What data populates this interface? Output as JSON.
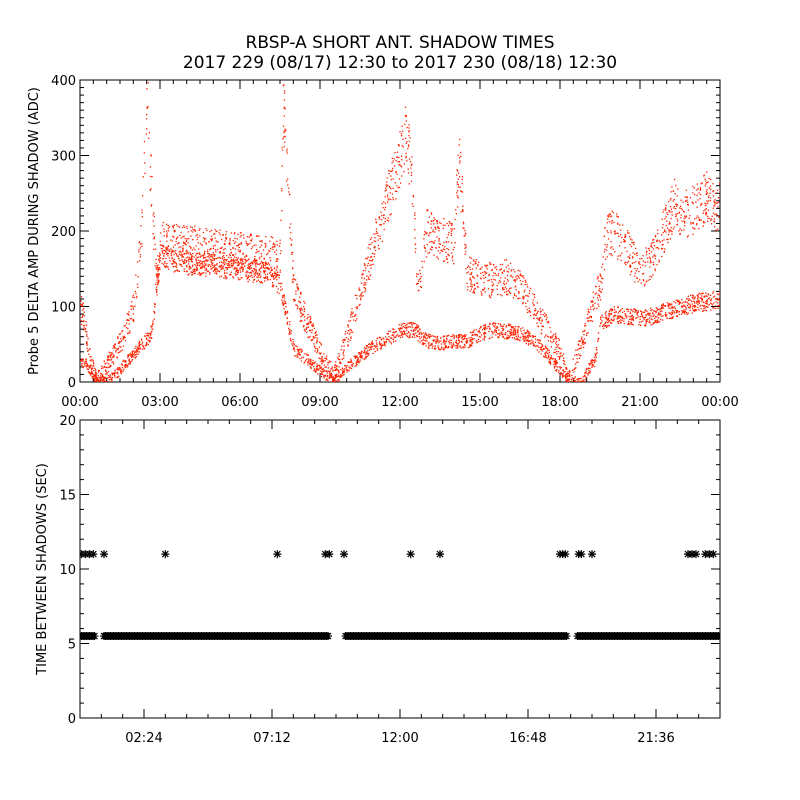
{
  "title": "RBSP-A SHORT ANT. SHADOW TIMES",
  "subtitle": "2017 229 (08/17) 12:30 to 2017 230 (08/18) 12:30",
  "colors": {
    "points": "#ff2200",
    "markers": "#000000",
    "axes": "#000000"
  },
  "chart_data": [
    {
      "type": "scatter",
      "ylabel": "Probe 5 DELTA AMP DURING SHADOW (ADC)",
      "xlabel": "",
      "xlim": [
        0,
        24
      ],
      "ylim": [
        0,
        400
      ],
      "x_tick_values": [
        0,
        3,
        6,
        9,
        12,
        15,
        18,
        21,
        24
      ],
      "x_tick_labels": [
        "00:00",
        "03:00",
        "06:00",
        "09:00",
        "12:00",
        "15:00",
        "18:00",
        "21:00",
        "00:00"
      ],
      "y_tick_values": [
        0,
        100,
        200,
        300,
        400
      ],
      "y_tick_labels": [
        "0",
        "100",
        "200",
        "300",
        "400"
      ],
      "grid": false,
      "marker_color": "#ff2200",
      "series": [
        {
          "x": [
            0.0,
            0.2,
            0.4,
            0.6,
            1.0,
            1.3,
            1.6,
            2.0,
            2.3,
            2.5,
            2.7,
            3.0,
            3.5,
            4.0,
            5.0,
            6.0,
            7.0,
            7.5,
            8.0,
            8.5,
            9.0,
            9.5,
            10.0,
            10.5,
            11.0,
            11.5,
            12.0,
            12.5,
            13.0,
            13.5,
            14.0,
            14.5,
            15.0,
            15.5,
            16.0,
            16.5,
            17.0,
            17.5,
            18.0,
            18.4,
            18.8,
            19.0,
            19.3,
            19.5,
            20.0,
            20.5,
            21.0,
            21.5,
            22.0,
            22.5,
            23.0,
            23.5,
            24.0
          ],
          "y": [
            30,
            25,
            15,
            2,
            2,
            10,
            22,
            38,
            50,
            58,
            70,
            170,
            162,
            158,
            155,
            150,
            145,
            130,
            45,
            30,
            15,
            2,
            20,
            35,
            48,
            58,
            68,
            70,
            55,
            52,
            55,
            55,
            65,
            70,
            68,
            65,
            55,
            38,
            15,
            2,
            2,
            15,
            30,
            78,
            90,
            88,
            85,
            88,
            95,
            100,
            105,
            108,
            110
          ]
        },
        {
          "x": [
            0.0,
            0.15,
            0.3,
            0.6,
            1.3,
            1.6,
            2.0,
            2.3,
            2.5,
            2.6,
            2.75,
            2.85,
            3.0,
            7.5,
            7.6,
            7.8,
            8.0,
            8.5,
            9.0,
            9.5,
            10.0,
            10.5,
            11.0,
            11.5,
            12.0,
            12.2,
            12.5,
            12.6,
            12.8,
            13.0,
            13.5,
            14.0,
            14.2,
            14.5,
            15.0,
            15.5,
            16.0,
            16.5,
            17.0,
            17.5,
            18.0,
            18.3,
            19.5,
            19.7,
            20.0,
            20.5,
            21.0,
            21.5,
            22.0,
            22.3,
            22.6,
            23.0,
            23.5,
            24.0
          ],
          "y": [
            100,
            80,
            40,
            2,
            40,
            60,
            100,
            200,
            400,
            300,
            200,
            130,
            185,
            165,
            380,
            250,
            120,
            80,
            40,
            10,
            60,
            120,
            180,
            240,
            300,
            330,
            260,
            140,
            150,
            200,
            190,
            185,
            300,
            145,
            140,
            135,
            140,
            125,
            100,
            70,
            40,
            2,
            130,
            190,
            200,
            175,
            145,
            170,
            210,
            240,
            220,
            230,
            245,
            230
          ]
        }
      ]
    },
    {
      "type": "scatter",
      "ylabel": "TIME BETWEEN SHADOWS (SEC)",
      "xlabel": "",
      "xlim": [
        0,
        24
      ],
      "ylim": [
        0,
        20
      ],
      "x_tick_values": [
        2.4,
        7.2,
        12.0,
        16.8,
        21.6
      ],
      "x_tick_labels": [
        "02:24",
        "07:12",
        "12:00",
        "16:48",
        "21:36"
      ],
      "y_tick_values": [
        0,
        5,
        10,
        15,
        20
      ],
      "y_tick_labels": [
        "0",
        "5",
        "10",
        "15",
        "20"
      ],
      "grid": false,
      "marker": "asterisk",
      "marker_color": "#000000",
      "series": [
        {
          "x": [
            0.05,
            0.2,
            0.35,
            0.5,
            0.9,
            3.2,
            7.4,
            9.2,
            9.35,
            9.9,
            12.4,
            13.5,
            18.0,
            18.1,
            18.2,
            18.7,
            18.8,
            19.2,
            22.8,
            22.95,
            23.1,
            23.45,
            23.6,
            23.75
          ],
          "y": [
            11,
            11,
            11,
            11,
            11,
            11,
            11,
            11,
            11,
            11,
            11,
            11,
            11,
            11,
            11,
            11,
            11,
            11,
            11,
            11,
            11,
            11,
            11,
            11
          ]
        },
        {
          "x": [
            0.0,
            0.2,
            0.4,
            0.55,
            0.9,
            1.2,
            1.5,
            1.8,
            2.1,
            2.4,
            2.7,
            3.0,
            3.3,
            3.6,
            3.9,
            4.2,
            4.5,
            4.8,
            5.1,
            5.4,
            5.7,
            6.0,
            6.3,
            6.6,
            6.9,
            7.2,
            7.5,
            7.8,
            8.1,
            8.4,
            8.7,
            9.0,
            9.3,
            10.0,
            10.3,
            10.6,
            10.9,
            11.2,
            11.5,
            11.8,
            12.1,
            12.4,
            12.7,
            13.0,
            13.3,
            13.6,
            13.9,
            14.2,
            14.5,
            14.8,
            15.1,
            15.4,
            15.7,
            16.0,
            16.3,
            16.6,
            16.9,
            17.2,
            17.5,
            17.8,
            18.1,
            18.3,
            18.7,
            19.0,
            19.3,
            19.6,
            19.9,
            20.2,
            20.5,
            20.8,
            21.1,
            21.4,
            21.7,
            22.0,
            22.3,
            22.6,
            22.9,
            23.2,
            23.5,
            23.8,
            24.0
          ],
          "y": [
            5.5,
            5.5,
            5.5,
            5.5,
            5.5,
            5.5,
            5.5,
            5.5,
            5.5,
            5.5,
            5.5,
            5.5,
            5.5,
            5.5,
            5.5,
            5.5,
            5.5,
            5.5,
            5.5,
            5.5,
            5.5,
            5.5,
            5.5,
            5.5,
            5.5,
            5.5,
            5.5,
            5.5,
            5.5,
            5.5,
            5.5,
            5.5,
            5.5,
            5.5,
            5.5,
            5.5,
            5.5,
            5.5,
            5.5,
            5.5,
            5.5,
            5.5,
            5.5,
            5.5,
            5.5,
            5.5,
            5.5,
            5.5,
            5.5,
            5.5,
            5.5,
            5.5,
            5.5,
            5.5,
            5.5,
            5.5,
            5.5,
            5.5,
            5.5,
            5.5,
            5.5,
            5.5,
            5.5,
            5.5,
            5.5,
            5.5,
            5.5,
            5.5,
            5.5,
            5.5,
            5.5,
            5.5,
            5.5,
            5.5,
            5.5,
            5.5,
            5.5,
            5.5,
            5.5,
            5.5,
            5.5
          ]
        }
      ]
    }
  ]
}
